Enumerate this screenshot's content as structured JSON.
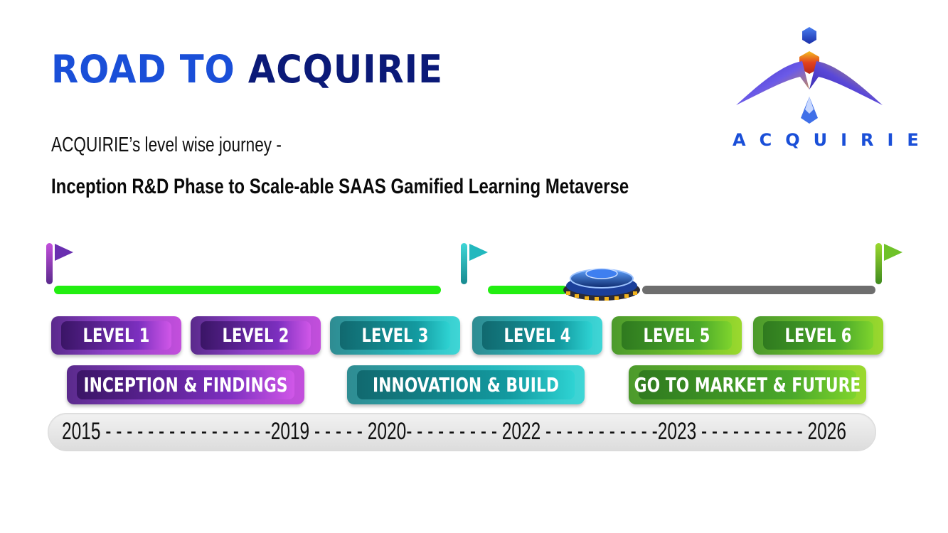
{
  "header": {
    "title_part1": "ROAD TO",
    "title_part2": "ACQUIRIE",
    "subtitle": "ACQUIRIE’s level wise journey -",
    "tagline": "Inception R&D Phase to Scale-able SAAS Gamified Learning Metaverse"
  },
  "logo": {
    "text": "ACQUIRIE",
    "icon": "bird-emblem-icon"
  },
  "timeline": {
    "flags": [
      "purple-flag-icon",
      "teal-flag-icon",
      "green-flag-icon"
    ],
    "progress_marker": "platform-marker-icon",
    "colors": {
      "completed": "#22ee11",
      "pending": "#6e6e6e"
    }
  },
  "levels": [
    {
      "label": "LEVEL 1",
      "color": "purple"
    },
    {
      "label": "LEVEL 2",
      "color": "purple"
    },
    {
      "label": "LEVEL 3",
      "color": "teal"
    },
    {
      "label": "LEVEL 4",
      "color": "teal"
    },
    {
      "label": "LEVEL 5",
      "color": "green"
    },
    {
      "label": "LEVEL 6",
      "color": "green"
    }
  ],
  "phases": [
    {
      "label": "INCEPTION & FINDINGS",
      "color": "purple"
    },
    {
      "label": "INNOVATION & BUILD",
      "color": "teal"
    },
    {
      "label": "GO TO MARKET & FUTURE",
      "color": "green"
    }
  ],
  "years": {
    "text": "2015 - - - - - - - - - - - - - - - -2019 - - - - - 2020- - - - - - - - - 2022  - - - - - - - - - - -2023 - - - - - - - - - - 2026"
  }
}
